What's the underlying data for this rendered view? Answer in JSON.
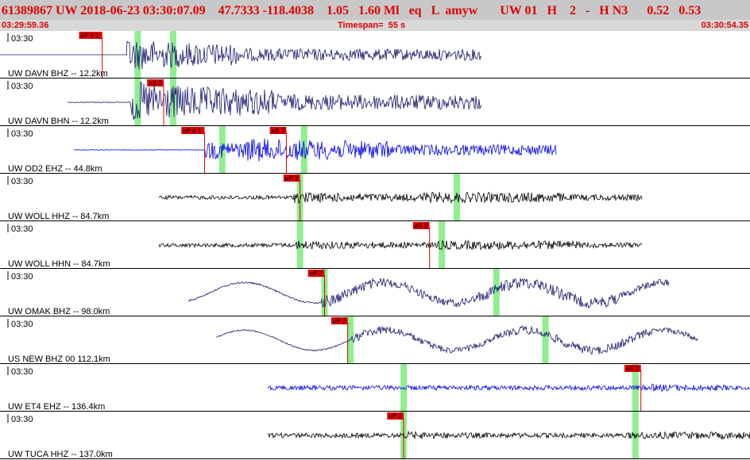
{
  "header": {
    "event_line": "61389867 UW 2018-06-23 03:30:07.09    47.7333 -118.4038    1.05   1.60 Ml   eq   L  amyw       UW 01   H    2   -   H N3      0.52   0.53"
  },
  "timebar": {
    "start": "03:29:59.36",
    "span": "Timespan=  55 s",
    "end": "03:30:54.35"
  },
  "colors": {
    "header_bg": "#c8c8c8",
    "timebar_bg": "#d8d8d8",
    "header_text": "#e00000",
    "pick_box": "#e00000",
    "pick_line": "#e00000",
    "window_band": "#90ee90",
    "trace_navy": "#1a1a6e",
    "trace_blue": "#0000ee",
    "trace_black": "#000000"
  },
  "panels": [
    {
      "time_label": "03:30",
      "station_label": "UW DAVN BHZ -- 12.2km",
      "trace_color": "navy",
      "picks": [
        {
          "label": "eP d 1",
          "time": 7.5
        }
      ],
      "windows": [
        10.1,
        12.7
      ]
    },
    {
      "time_label": "03:30",
      "station_label": "UW DAVN BHN -- 12.2km",
      "trace_color": "navy",
      "picks": [
        {
          "label": "eS 2",
          "time": 12.0
        }
      ],
      "windows": [
        10.1,
        12.7
      ]
    },
    {
      "time_label": "03:30",
      "station_label": "UW OD2 EHZ -- 44.8km",
      "trace_color": "blue",
      "picks": [
        {
          "label": "eP d 1",
          "time": 15.0
        },
        {
          "label": "eS 2",
          "time": 21.0
        }
      ],
      "windows": [
        16.3,
        22.3
      ]
    },
    {
      "time_label": "03:30",
      "station_label": "UW WOLL HHZ -- 84.7km",
      "trace_color": "black",
      "picks": [
        {
          "label": "eP 2",
          "time": 22.0
        }
      ],
      "windows": [
        22.0,
        33.5
      ]
    },
    {
      "time_label": "03:30",
      "station_label": "UW WOLL HHN -- 84.7km",
      "trace_color": "black",
      "picks": [
        {
          "label": "eS 2",
          "time": 31.5
        }
      ],
      "windows": [
        22.0,
        32.4
      ]
    },
    {
      "time_label": "03:30",
      "station_label": "UW OMAK BHZ -- 98.0km",
      "trace_color": "navy",
      "picks": [
        {
          "label": "eP 2",
          "time": 23.8
        }
      ],
      "windows": [
        23.8,
        36.4
      ]
    },
    {
      "time_label": "03:30",
      "station_label": "US NEW BHZ 00 112.1km",
      "trace_color": "navy",
      "picks": [
        {
          "label": "eP 2",
          "time": 25.5
        }
      ],
      "windows": [
        25.7,
        40.0
      ]
    },
    {
      "time_label": "03:30",
      "station_label": "UW ET4 EHZ -- 136.4km",
      "trace_color": "blue",
      "picks": [
        {
          "label": "eS 2",
          "time": 47.0
        }
      ],
      "windows": [
        29.6,
        46.6
      ]
    },
    {
      "time_label": "03:30",
      "station_label": "UW TUCA HHZ -- 137.0km",
      "trace_color": "black",
      "picks": [
        {
          "label": "eP 2",
          "time": 29.6
        }
      ],
      "windows": [
        29.6,
        46.6
      ]
    }
  ]
}
